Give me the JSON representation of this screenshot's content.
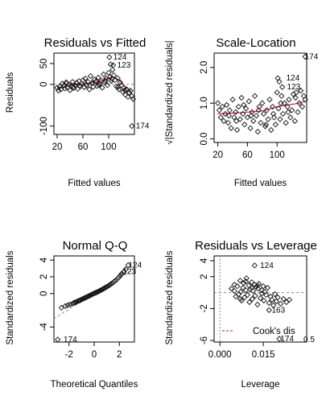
{
  "chart_data": [
    {
      "id": "rvf",
      "type": "scatter",
      "title": "Residuals vs Fitted",
      "xlabel": "Fitted values",
      "ylabel": "Residuals",
      "xlim": [
        15,
        140
      ],
      "ylim": [
        -120,
        75
      ],
      "xticks": [
        20,
        60,
        100
      ],
      "yticks": [
        -100,
        0,
        50
      ],
      "refline": {
        "type": "h",
        "value": 0
      },
      "smooth": [
        [
          20,
          -8
        ],
        [
          40,
          -3
        ],
        [
          60,
          2
        ],
        [
          80,
          5
        ],
        [
          95,
          12
        ],
        [
          105,
          18
        ],
        [
          115,
          12
        ],
        [
          125,
          -5
        ],
        [
          135,
          -15
        ]
      ],
      "points": [
        [
          20,
          -8
        ],
        [
          22,
          -15
        ],
        [
          24,
          -5
        ],
        [
          26,
          -12
        ],
        [
          28,
          2
        ],
        [
          30,
          -3
        ],
        [
          32,
          -10
        ],
        [
          34,
          5
        ],
        [
          36,
          -8
        ],
        [
          38,
          0
        ],
        [
          40,
          -14
        ],
        [
          42,
          -4
        ],
        [
          44,
          6
        ],
        [
          46,
          -9
        ],
        [
          48,
          -2
        ],
        [
          50,
          4
        ],
        [
          52,
          -11
        ],
        [
          54,
          8
        ],
        [
          56,
          -5
        ],
        [
          58,
          2
        ],
        [
          60,
          10
        ],
        [
          62,
          -7
        ],
        [
          64,
          14
        ],
        [
          66,
          -3
        ],
        [
          68,
          6
        ],
        [
          70,
          -12
        ],
        [
          72,
          20
        ],
        [
          74,
          3
        ],
        [
          76,
          -6
        ],
        [
          78,
          12
        ],
        [
          80,
          7
        ],
        [
          82,
          -4
        ],
        [
          84,
          16
        ],
        [
          86,
          2
        ],
        [
          88,
          9
        ],
        [
          90,
          -8
        ],
        [
          92,
          24
        ],
        [
          94,
          5
        ],
        [
          96,
          14
        ],
        [
          98,
          -2
        ],
        [
          100,
          28
        ],
        [
          102,
          18
        ],
        [
          104,
          8
        ],
        [
          106,
          35
        ],
        [
          108,
          22
        ],
        [
          110,
          10
        ],
        [
          112,
          -5
        ],
        [
          114,
          15
        ],
        [
          116,
          -12
        ],
        [
          118,
          5
        ],
        [
          120,
          -2
        ],
        [
          122,
          -18
        ],
        [
          124,
          -8
        ],
        [
          126,
          -25
        ],
        [
          128,
          -12
        ],
        [
          130,
          -30
        ],
        [
          132,
          -20
        ],
        [
          134,
          -15
        ],
        [
          136,
          -28
        ],
        [
          138,
          -35
        ],
        [
          45,
          -6
        ],
        [
          55,
          -3
        ],
        [
          65,
          0
        ],
        [
          75,
          4
        ],
        [
          85,
          -2
        ],
        [
          95,
          9
        ],
        [
          105,
          13
        ],
        [
          115,
          -6
        ],
        [
          125,
          -14
        ],
        [
          35,
          3
        ],
        [
          103,
          48
        ],
        [
          107,
          46
        ],
        [
          101,
          65
        ],
        [
          136,
          -100
        ]
      ],
      "labels": [
        {
          "text": "124",
          "x": 101,
          "y": 65
        },
        {
          "text": "123",
          "x": 107,
          "y": 46
        },
        {
          "text": "174",
          "x": 136,
          "y": -100
        }
      ]
    },
    {
      "id": "sl",
      "type": "scatter",
      "title": "Scale-Location",
      "xlabel": "Fitted values",
      "ylabel": "√|Standardized residuals|",
      "xlim": [
        15,
        140
      ],
      "ylim": [
        -0.1,
        2.4
      ],
      "xticks": [
        20,
        60,
        100
      ],
      "yticks": [
        0.0,
        1.0,
        2.0
      ],
      "smooth": [
        [
          20,
          0.7
        ],
        [
          40,
          0.72
        ],
        [
          60,
          0.75
        ],
        [
          80,
          0.78
        ],
        [
          100,
          0.9
        ],
        [
          115,
          0.95
        ],
        [
          130,
          1.0
        ],
        [
          138,
          1.05
        ]
      ],
      "points": [
        [
          20,
          1.0
        ],
        [
          22,
          0.8
        ],
        [
          24,
          0.6
        ],
        [
          26,
          0.9
        ],
        [
          28,
          0.5
        ],
        [
          30,
          0.7
        ],
        [
          32,
          0.95
        ],
        [
          34,
          0.45
        ],
        [
          36,
          0.8
        ],
        [
          38,
          0.3
        ],
        [
          40,
          1.1
        ],
        [
          42,
          0.6
        ],
        [
          44,
          0.75
        ],
        [
          46,
          0.25
        ],
        [
          48,
          0.9
        ],
        [
          50,
          0.55
        ],
        [
          52,
          1.15
        ],
        [
          54,
          0.7
        ],
        [
          56,
          0.4
        ],
        [
          58,
          0.85
        ],
        [
          60,
          0.6
        ],
        [
          62,
          1.05
        ],
        [
          64,
          0.3
        ],
        [
          66,
          0.75
        ],
        [
          68,
          0.5
        ],
        [
          70,
          1.2
        ],
        [
          72,
          0.65
        ],
        [
          74,
          0.2
        ],
        [
          76,
          0.9
        ],
        [
          78,
          0.45
        ],
        [
          80,
          1.0
        ],
        [
          82,
          0.7
        ],
        [
          84,
          0.35
        ],
        [
          86,
          0.8
        ],
        [
          88,
          0.55
        ],
        [
          90,
          1.1
        ],
        [
          92,
          0.25
        ],
        [
          94,
          0.9
        ],
        [
          96,
          0.6
        ],
        [
          98,
          0.4
        ],
        [
          100,
          1.3
        ],
        [
          102,
          0.85
        ],
        [
          104,
          0.55
        ],
        [
          106,
          1.2
        ],
        [
          108,
          0.7
        ],
        [
          110,
          1.0
        ],
        [
          112,
          0.45
        ],
        [
          114,
          0.9
        ],
        [
          116,
          1.1
        ],
        [
          118,
          0.6
        ],
        [
          120,
          0.8
        ],
        [
          122,
          1.25
        ],
        [
          124,
          0.5
        ],
        [
          126,
          1.3
        ],
        [
          128,
          0.75
        ],
        [
          130,
          1.0
        ],
        [
          132,
          1.35
        ],
        [
          134,
          0.9
        ],
        [
          136,
          1.2
        ],
        [
          138,
          1.1
        ],
        [
          45,
          0.5
        ],
        [
          55,
          0.95
        ],
        [
          65,
          0.65
        ],
        [
          75,
          0.8
        ],
        [
          85,
          0.4
        ],
        [
          95,
          0.7
        ],
        [
          105,
          1.0
        ],
        [
          115,
          0.75
        ],
        [
          125,
          1.15
        ],
        [
          35,
          0.65
        ],
        [
          103,
          1.6
        ],
        [
          107,
          1.45
        ],
        [
          101,
          1.7
        ],
        [
          138,
          2.3
        ]
      ],
      "labels": [
        {
          "text": "174",
          "x": 132,
          "y": 2.3
        },
        {
          "text": "124",
          "x": 107,
          "y": 1.7
        },
        {
          "text": "123",
          "x": 108,
          "y": 1.45
        }
      ]
    },
    {
      "id": "qq",
      "type": "scatter",
      "title": "Normal Q-Q",
      "xlabel": "Theoretical Quantiles",
      "ylabel": "Standardized residuals",
      "xlim": [
        -3.2,
        3.2
      ],
      "ylim": [
        -5.8,
        4.5
      ],
      "xticks": [
        -2,
        0,
        2
      ],
      "yticks": [
        -4,
        0,
        2,
        4
      ],
      "refline": {
        "type": "qq",
        "from": [
          -3.2,
          -3.0
        ],
        "to": [
          3.2,
          3.0
        ]
      },
      "points": [
        [
          -2.6,
          -1.7
        ],
        [
          -2.3,
          -1.5
        ],
        [
          -2.1,
          -1.4
        ],
        [
          -1.9,
          -1.3
        ],
        [
          -1.7,
          -1.2
        ],
        [
          -1.6,
          -1.1
        ],
        [
          -1.5,
          -1.05
        ],
        [
          -1.4,
          -1.0
        ],
        [
          -1.3,
          -0.9
        ],
        [
          -1.2,
          -0.85
        ],
        [
          -1.1,
          -0.8
        ],
        [
          -1.0,
          -0.7
        ],
        [
          -0.9,
          -0.65
        ],
        [
          -0.8,
          -0.55
        ],
        [
          -0.7,
          -0.5
        ],
        [
          -0.6,
          -0.42
        ],
        [
          -0.5,
          -0.35
        ],
        [
          -0.4,
          -0.28
        ],
        [
          -0.3,
          -0.2
        ],
        [
          -0.2,
          -0.12
        ],
        [
          -0.1,
          -0.05
        ],
        [
          0.0,
          0.02
        ],
        [
          0.1,
          0.08
        ],
        [
          0.2,
          0.15
        ],
        [
          0.3,
          0.22
        ],
        [
          0.4,
          0.3
        ],
        [
          0.5,
          0.38
        ],
        [
          0.6,
          0.45
        ],
        [
          0.7,
          0.55
        ],
        [
          0.8,
          0.62
        ],
        [
          0.9,
          0.72
        ],
        [
          1.0,
          0.8
        ],
        [
          1.1,
          0.9
        ],
        [
          1.2,
          1.0
        ],
        [
          1.3,
          1.1
        ],
        [
          1.4,
          1.2
        ],
        [
          1.5,
          1.3
        ],
        [
          1.6,
          1.45
        ],
        [
          1.7,
          1.55
        ],
        [
          1.8,
          1.7
        ],
        [
          1.9,
          1.85
        ],
        [
          2.0,
          2.0
        ],
        [
          2.1,
          2.2
        ],
        [
          2.2,
          2.4
        ],
        [
          2.35,
          2.6
        ],
        [
          2.5,
          2.9
        ],
        [
          2.7,
          3.4
        ],
        [
          -2.9,
          -5.5
        ]
      ],
      "labels": [
        {
          "text": "124",
          "x": 2.4,
          "y": 3.4
        },
        {
          "text": "123",
          "x": 1.95,
          "y": 2.6
        },
        {
          "text": "174",
          "x": -2.75,
          "y": -5.5
        }
      ]
    },
    {
      "id": "rvl",
      "type": "scatter",
      "title": "Residuals vs Leverage",
      "xlabel": "Leverage",
      "ylabel": "Standardized residuals",
      "xlim": [
        -0.002,
        0.03
      ],
      "ylim": [
        -6.2,
        4.6
      ],
      "xticks": [
        0.0,
        0.015
      ],
      "xtick_labels": [
        "0.000",
        "0.015"
      ],
      "yticks": [
        -6,
        -2,
        2,
        4
      ],
      "refline": {
        "type": "h",
        "value": 0
      },
      "legend": {
        "text": "Cook's dis",
        "extra": "0.5"
      },
      "points": [
        [
          0.004,
          0.5
        ],
        [
          0.005,
          1.0
        ],
        [
          0.0055,
          -0.5
        ],
        [
          0.006,
          0.8
        ],
        [
          0.0065,
          -0.2
        ],
        [
          0.007,
          1.5
        ],
        [
          0.0072,
          0.1
        ],
        [
          0.0075,
          -1.0
        ],
        [
          0.008,
          0.6
        ],
        [
          0.0082,
          1.2
        ],
        [
          0.0085,
          -0.6
        ],
        [
          0.009,
          0.3
        ],
        [
          0.0092,
          1.8
        ],
        [
          0.0095,
          -0.3
        ],
        [
          0.01,
          0.9
        ],
        [
          0.0102,
          -1.2
        ],
        [
          0.0105,
          0.4
        ],
        [
          0.011,
          1.3
        ],
        [
          0.0112,
          -0.8
        ],
        [
          0.0115,
          0.2
        ],
        [
          0.012,
          1.0
        ],
        [
          0.0122,
          -0.4
        ],
        [
          0.0125,
          0.7
        ],
        [
          0.013,
          -1.5
        ],
        [
          0.0132,
          0.5
        ],
        [
          0.0135,
          1.1
        ],
        [
          0.014,
          -0.7
        ],
        [
          0.0145,
          0.3
        ],
        [
          0.015,
          0.8
        ],
        [
          0.0152,
          -1.0
        ],
        [
          0.0155,
          0.1
        ],
        [
          0.016,
          -0.3
        ],
        [
          0.0165,
          0.6
        ],
        [
          0.017,
          -1.3
        ],
        [
          0.0175,
          -0.5
        ],
        [
          0.018,
          -0.9
        ],
        [
          0.0185,
          -1.6
        ],
        [
          0.019,
          -0.2
        ],
        [
          0.0195,
          -1.1
        ],
        [
          0.02,
          -0.6
        ],
        [
          0.021,
          -1.4
        ],
        [
          0.022,
          -0.8
        ],
        [
          0.023,
          -1.2
        ],
        [
          0.024,
          -0.9
        ],
        [
          0.005,
          0.2
        ],
        [
          0.007,
          -0.8
        ],
        [
          0.009,
          1.4
        ],
        [
          0.011,
          0.6
        ],
        [
          0.013,
          0.9
        ],
        [
          0.0145,
          -0.1
        ],
        [
          0.012,
          3.4
        ],
        [
          0.017,
          -2.2
        ],
        [
          0.0205,
          -5.8
        ]
      ],
      "labels": [
        {
          "text": "124",
          "x": 0.0125,
          "y": 3.4
        },
        {
          "text": "163",
          "x": 0.0165,
          "y": -2.2
        },
        {
          "text": "174",
          "x": 0.0195,
          "y": -5.8
        }
      ]
    }
  ]
}
